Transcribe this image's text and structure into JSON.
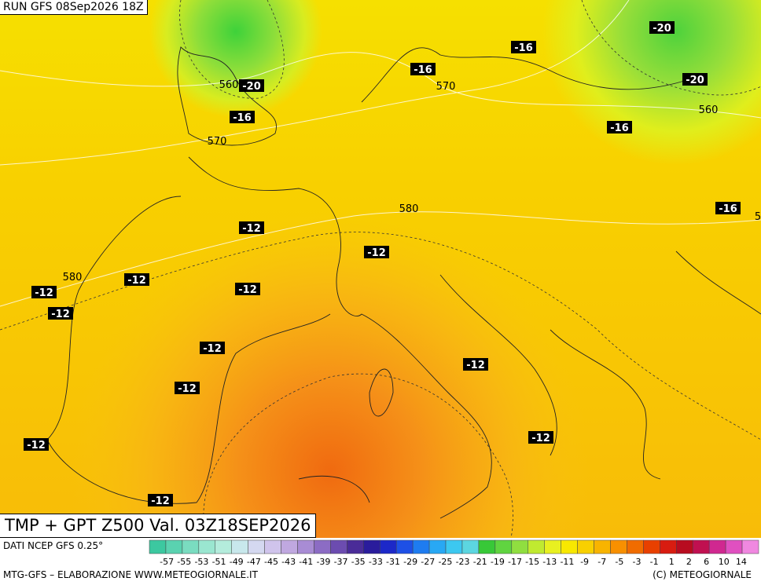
{
  "header": {
    "run": "RUN GFS 08Sep2026 18Z"
  },
  "title": "TMP + GPT Z500 Val. 03Z18SEP2026",
  "map": {
    "temperature_labels": [
      "-20",
      "-20",
      "-20",
      "-16",
      "-16",
      "-16",
      "-16",
      "-16",
      "-12",
      "-12",
      "-12",
      "-12",
      "-12",
      "-12",
      "-12",
      "-12",
      "-12",
      "-12",
      "-12",
      "-12"
    ],
    "height_labels": [
      "560",
      "560",
      "570",
      "570",
      "580",
      "580",
      "5"
    ]
  },
  "colorbar": {
    "labels": [
      "-57",
      "-55",
      "-53",
      "-51",
      "-49",
      "-47",
      "-45",
      "-43",
      "-41",
      "-39",
      "-37",
      "-35",
      "-33",
      "-31",
      "-29",
      "-27",
      "-25",
      "-23",
      "-21",
      "-19",
      "-17",
      "-15",
      "-13",
      "-11",
      "-9",
      "-7",
      "-5",
      "-3",
      "-1",
      "1",
      "2",
      "6",
      "10",
      "14"
    ],
    "colors": [
      "#3cc8a0",
      "#5ad2b0",
      "#7adcc0",
      "#9ae6d0",
      "#b4ecdc",
      "#c8e8ec",
      "#d4d8f0",
      "#d0c4ec",
      "#c0a8e0",
      "#a88cd4",
      "#8c6cc4",
      "#6c4cb0",
      "#4a2c98",
      "#2a1c9c",
      "#1c28c8",
      "#1e50e6",
      "#1e7cf0",
      "#28a8f4",
      "#3cc8f0",
      "#5cd6e0",
      "#38c838",
      "#60d440",
      "#90de40",
      "#c0ea30",
      "#e8f020",
      "#f8e800",
      "#f8d000",
      "#f8b400",
      "#f89000",
      "#f06c00",
      "#e84000",
      "#d81c10",
      "#b80c20",
      "#c01050",
      "#d02890",
      "#e050c0",
      "#f088e0"
    ]
  },
  "footer": {
    "source": "DATI NCEP GFS 0.25°",
    "credit": "MTG-GFS – ELABORAZIONE WWW.METEOGIORNALE.IT",
    "copyright": "(C) METEOGIORNALE"
  }
}
